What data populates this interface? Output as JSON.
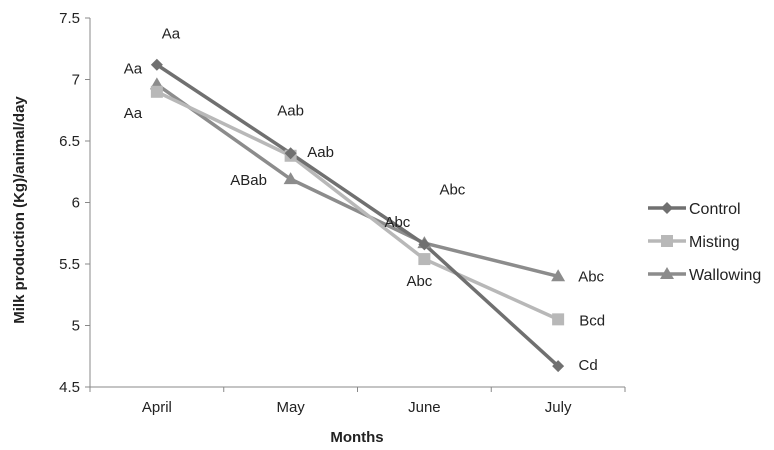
{
  "chart_data": {
    "type": "line",
    "title": "",
    "xlabel": "Months",
    "ylabel": "Milk production (Kg)/animal/day",
    "categories": [
      "April",
      "May",
      "June",
      "July"
    ],
    "ylim": [
      4.5,
      7.5
    ],
    "yticks": [
      "4.5",
      "5",
      "5.5",
      "6",
      "6.5",
      "7",
      "7.5"
    ],
    "grid": false,
    "legend_position": "right",
    "series": [
      {
        "name": "Control",
        "color": "#707070",
        "marker": "diamond",
        "values": [
          7.12,
          6.4,
          5.66,
          4.67
        ],
        "annotations": [
          "Aa",
          "Aab",
          "Abc",
          "Cd"
        ]
      },
      {
        "name": "Misting",
        "color": "#b8b8b8",
        "marker": "square",
        "values": [
          6.9,
          6.38,
          5.54,
          5.05
        ],
        "annotations": [
          "Aa",
          "Aab",
          "Abc",
          "Bcd"
        ]
      },
      {
        "name": "Wallowing",
        "color": "#8c8c8c",
        "marker": "triangle",
        "values": [
          6.96,
          6.19,
          5.67,
          5.4
        ],
        "annotations": [
          "Aa",
          "ABab",
          "Abc",
          "Abc"
        ]
      }
    ]
  }
}
